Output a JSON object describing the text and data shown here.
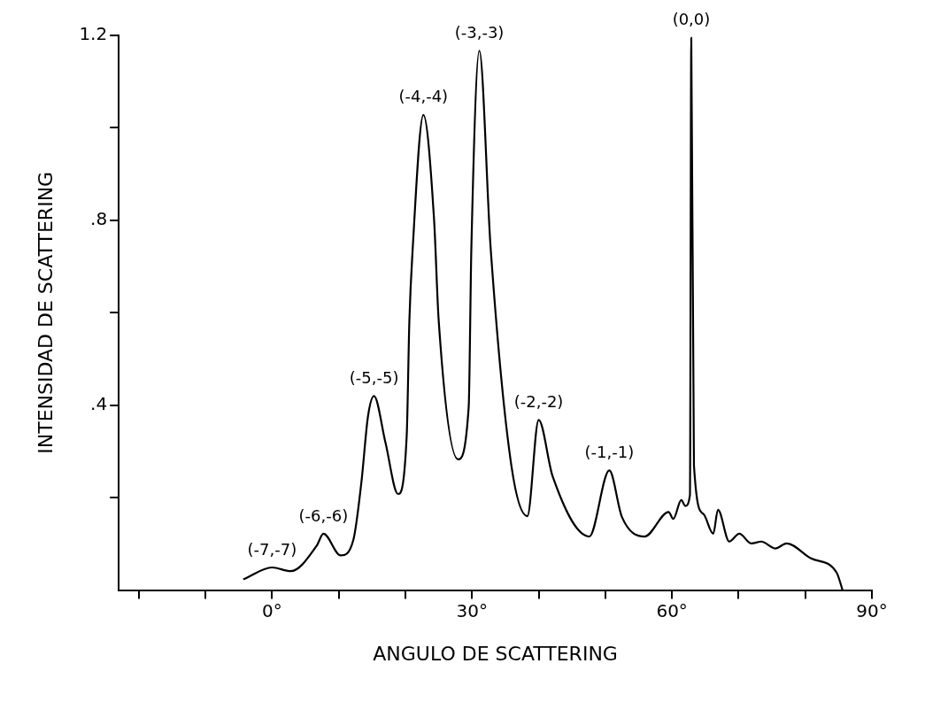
{
  "chart_data": {
    "type": "line",
    "xlabel": "ANGULO DE SCATTERING",
    "ylabel": "INTENSIDAD DE SCATTERING",
    "x": [
      -4.2,
      0,
      2.8,
      6.7,
      7.7,
      10.3,
      12.2,
      13.4,
      14.4,
      15.3,
      17,
      18.9,
      20.2,
      20.6,
      21.1,
      22.7,
      24.3,
      25,
      27.9,
      29.5,
      29.9,
      31.1,
      32.8,
      35.9,
      38.3,
      40,
      42.1,
      47.6,
      50.6,
      52.5,
      55.9,
      59.5,
      60.2,
      61.4,
      62,
      62.7,
      62.9,
      63.3,
      64.7,
      66.2,
      66.9,
      68.6,
      70.1,
      71.9,
      73.4,
      75.5,
      77.2,
      80.8,
      84.7,
      85.6
    ],
    "series": [
      {
        "color": "#000000",
        "values": [
          0.024,
          0.049,
          0.041,
          0.096,
          0.122,
          0.075,
          0.109,
          0.233,
          0.377,
          0.42,
          0.32,
          0.208,
          0.334,
          0.583,
          0.739,
          1.028,
          0.803,
          0.583,
          0.283,
          0.396,
          0.739,
          1.167,
          0.739,
          0.27,
          0.16,
          0.368,
          0.246,
          0.116,
          0.259,
          0.158,
          0.116,
          0.169,
          0.154,
          0.195,
          0.182,
          0.206,
          1.195,
          0.27,
          0.165,
          0.122,
          0.174,
          0.105,
          0.122,
          0.101,
          0.105,
          0.09,
          0.101,
          0.069,
          0.038,
          0
        ]
      }
    ],
    "xlim": [
      -23,
      90
    ],
    "xticks": [
      {
        "value": -20,
        "label": null
      },
      {
        "value": -10,
        "label": null
      },
      {
        "value": 0,
        "label": "0°"
      },
      {
        "value": 10,
        "label": null
      },
      {
        "value": 20,
        "label": null
      },
      {
        "value": 30,
        "label": "30°"
      },
      {
        "value": 40,
        "label": null
      },
      {
        "value": 50,
        "label": null
      },
      {
        "value": 60,
        "label": "60°"
      },
      {
        "value": 70,
        "label": null
      },
      {
        "value": 80,
        "label": null
      },
      {
        "value": 90,
        "label": "90°"
      }
    ],
    "ylim": [
      0,
      1.2
    ],
    "yticks": [
      {
        "value": 0.2,
        "label": null
      },
      {
        "value": 0.4,
        "label": ".4"
      },
      {
        "value": 0.6,
        "label": null
      },
      {
        "value": 0.8,
        "label": ".8"
      },
      {
        "value": 1.0,
        "label": null
      },
      {
        "value": 1.2,
        "label": "1.2"
      }
    ],
    "annotations": [
      {
        "text": "(-7,-7)",
        "x": 0,
        "y": 0.049
      },
      {
        "text": "(-6,-6)",
        "x": 7.7,
        "y": 0.122
      },
      {
        "text": "(-5,-5)",
        "x": 15.3,
        "y": 0.42
      },
      {
        "text": "(-4,-4)",
        "x": 22.7,
        "y": 1.028
      },
      {
        "text": "(-3,-3)",
        "x": 31.1,
        "y": 1.167
      },
      {
        "text": "(-2,-2)",
        "x": 40,
        "y": 0.368
      },
      {
        "text": "(-1,-1)",
        "x": 50.6,
        "y": 0.259
      },
      {
        "text": "(0,0)",
        "x": 62.9,
        "y": 1.195
      }
    ],
    "grid": false,
    "legend": false,
    "marker": "none",
    "line_style": "solid"
  }
}
